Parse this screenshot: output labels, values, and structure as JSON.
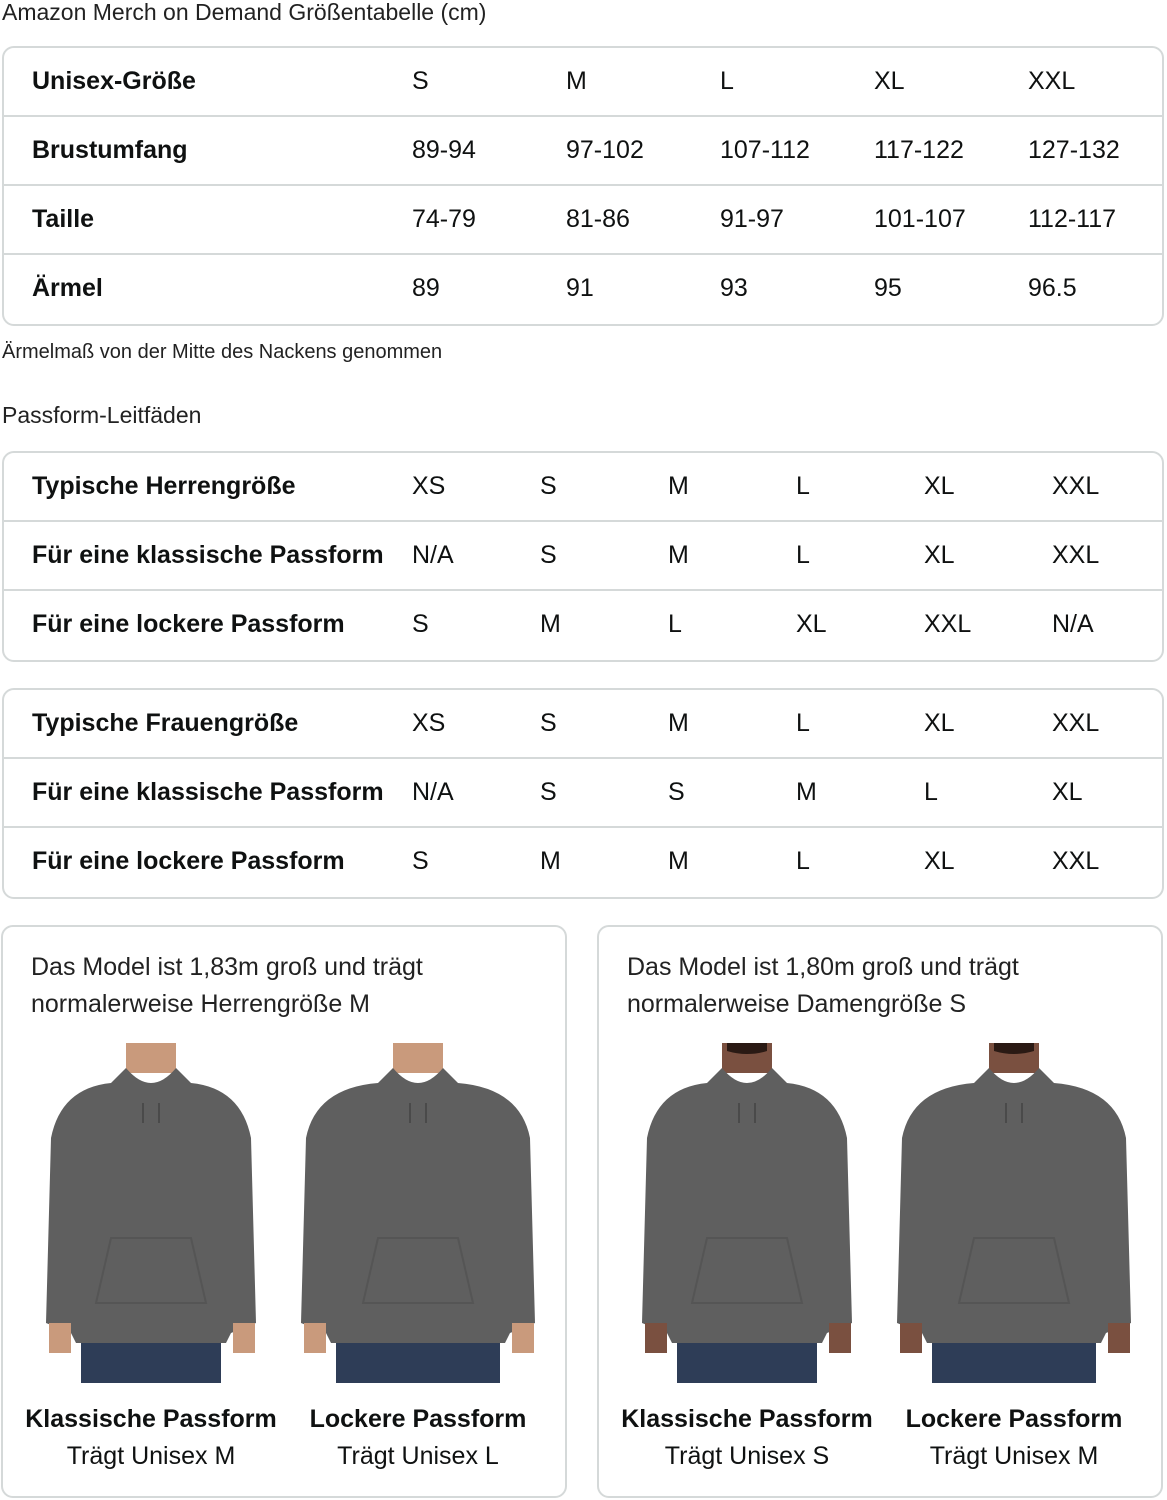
{
  "title": "Amazon Merch on Demand Größentabelle (cm)",
  "size_table": {
    "rows": [
      {
        "label": "Unisex-Größe",
        "values": [
          "S",
          "M",
          "L",
          "XL",
          "XXL"
        ]
      },
      {
        "label": "Brustumfang",
        "values": [
          "89-94",
          "97-102",
          "107-112",
          "117-122",
          "127-132"
        ]
      },
      {
        "label": "Taille",
        "values": [
          "74-79",
          "81-86",
          "91-97",
          "101-107",
          "112-117"
        ]
      },
      {
        "label": "Ärmel",
        "values": [
          "89",
          "91",
          "93",
          "95",
          "96.5"
        ]
      }
    ]
  },
  "note": "Ärmelmaß von der Mitte des Nackens genommen",
  "fit_title": "Passform-Leitfäden",
  "men_table": {
    "rows": [
      {
        "label": "Typische Herrengröße",
        "values": [
          "XS",
          "S",
          "M",
          "L",
          "XL",
          "XXL"
        ]
      },
      {
        "label": "Für eine klassische Passform",
        "values": [
          "N/A",
          "S",
          "M",
          "L",
          "XL",
          "XXL"
        ]
      },
      {
        "label": "Für eine lockere Passform",
        "values": [
          "S",
          "M",
          "L",
          "XL",
          "XXL",
          "N/A"
        ]
      }
    ]
  },
  "women_table": {
    "rows": [
      {
        "label": "Typische Frauengröße",
        "values": [
          "XS",
          "S",
          "M",
          "L",
          "XL",
          "XXL"
        ]
      },
      {
        "label": "Für eine klassische Passform",
        "values": [
          "N/A",
          "S",
          "S",
          "M",
          "L",
          "XL"
        ]
      },
      {
        "label": "Für eine lockere Passform",
        "values": [
          "S",
          "M",
          "M",
          "L",
          "XL",
          "XXL"
        ]
      }
    ]
  },
  "cards": [
    {
      "desc": "Das Model ist 1,83m groß und trägt normalerweise Herrengröße M",
      "figures": [
        {
          "fit": "Klassische Passform",
          "wears": "Trägt Unisex M"
        },
        {
          "fit": "Lockere Passform",
          "wears": "Trägt Unisex L"
        }
      ]
    },
    {
      "desc": "Das Model ist 1,80m groß und trägt normalerweise Damengröße S",
      "figures": [
        {
          "fit": "Klassische Passform",
          "wears": "Trägt Unisex S"
        },
        {
          "fit": "Lockere Passform",
          "wears": "Trägt Unisex M"
        }
      ]
    }
  ],
  "colors": {
    "hoodie": "#5f5f5f",
    "jeans": "#2e3d57",
    "skin": "#c99a7c",
    "border": "#d5d9d9"
  }
}
